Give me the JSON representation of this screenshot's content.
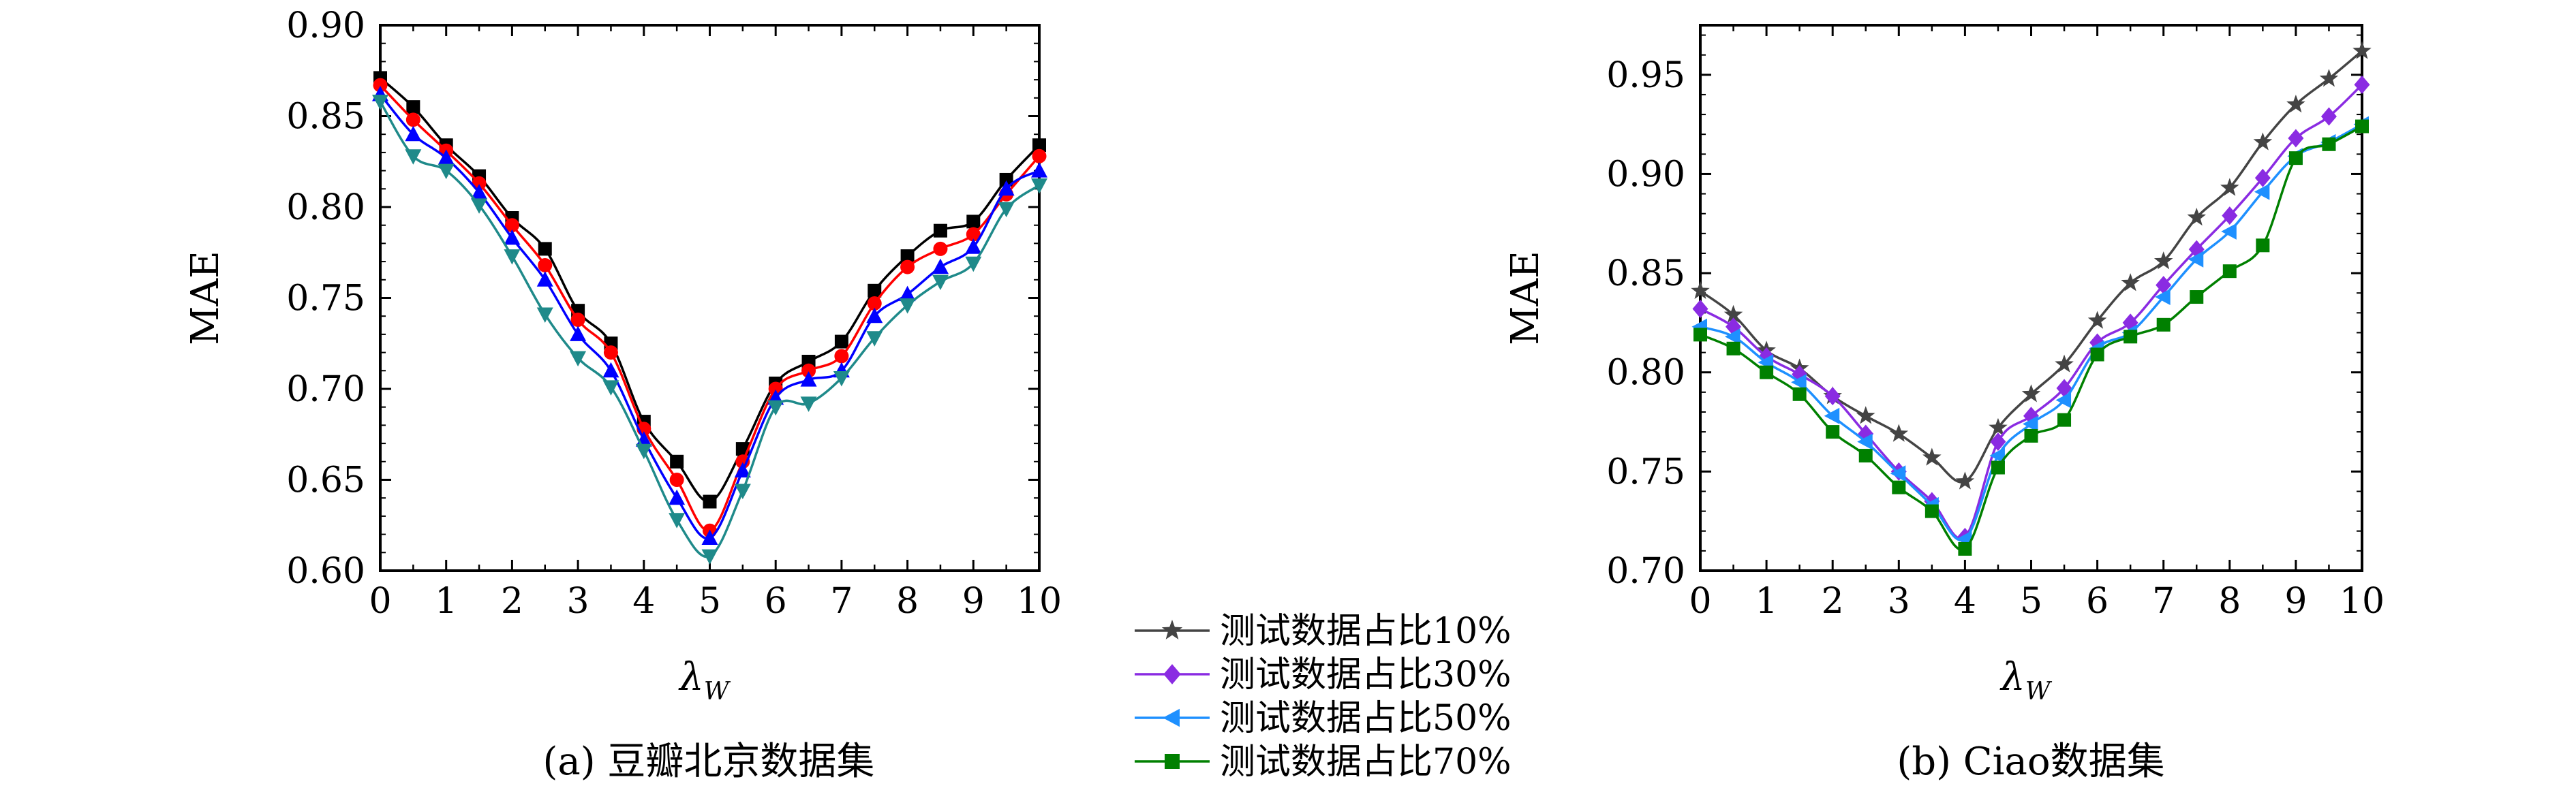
{
  "chart_data": [
    {
      "type": "line",
      "caption": "(a) 豆瓣北京数据集",
      "xlabel": "λ",
      "xlabel_sub": "W",
      "ylabel": "MAE",
      "xlim": [
        0,
        10
      ],
      "ylim": [
        0.6,
        0.9
      ],
      "x_ticks": [
        0,
        1,
        2,
        3,
        4,
        5,
        6,
        7,
        8,
        9,
        10
      ],
      "y_ticks": [
        0.6,
        0.65,
        0.7,
        0.75,
        0.8,
        0.85,
        0.9
      ],
      "y_tick_labels": [
        "0.60",
        "0.65",
        "0.70",
        "0.75",
        "0.80",
        "0.85",
        "0.90"
      ],
      "x": [
        0,
        0.5,
        1,
        1.5,
        2,
        2.5,
        3,
        3.5,
        4,
        4.5,
        5,
        5.5,
        6,
        6.5,
        7,
        7.5,
        8,
        8.5,
        9,
        9.5,
        10
      ],
      "series": [
        {
          "marker": "square",
          "color": "#000000",
          "values": [
            0.871,
            0.855,
            0.834,
            0.817,
            0.794,
            0.777,
            0.743,
            0.725,
            0.682,
            0.66,
            0.638,
            0.667,
            0.703,
            0.715,
            0.726,
            0.754,
            0.773,
            0.787,
            0.792,
            0.815,
            0.834
          ]
        },
        {
          "marker": "circle",
          "color": "#ff0000",
          "values": [
            0.867,
            0.848,
            0.831,
            0.813,
            0.79,
            0.768,
            0.738,
            0.72,
            0.678,
            0.65,
            0.622,
            0.66,
            0.7,
            0.71,
            0.718,
            0.747,
            0.767,
            0.777,
            0.785,
            0.807,
            0.828
          ]
        },
        {
          "marker": "triangle-up",
          "color": "#0000ff",
          "values": [
            0.862,
            0.84,
            0.827,
            0.808,
            0.783,
            0.76,
            0.73,
            0.71,
            0.672,
            0.64,
            0.618,
            0.655,
            0.695,
            0.705,
            0.71,
            0.74,
            0.752,
            0.767,
            0.778,
            0.81,
            0.82
          ]
        },
        {
          "marker": "triangle-down",
          "color": "#1f8a8a",
          "values": [
            0.858,
            0.828,
            0.82,
            0.801,
            0.773,
            0.741,
            0.717,
            0.701,
            0.666,
            0.628,
            0.608,
            0.644,
            0.69,
            0.692,
            0.706,
            0.728,
            0.746,
            0.759,
            0.769,
            0.799,
            0.812
          ]
        }
      ]
    },
    {
      "type": "line",
      "caption": "(b) Ciao数据集",
      "xlabel": "λ",
      "xlabel_sub": "W",
      "ylabel": "MAE",
      "xlim": [
        0,
        10
      ],
      "ylim": [
        0.7,
        0.975
      ],
      "x_ticks": [
        0,
        1,
        2,
        3,
        4,
        5,
        6,
        7,
        8,
        9,
        10
      ],
      "y_ticks": [
        0.7,
        0.75,
        0.8,
        0.85,
        0.9,
        0.95
      ],
      "y_tick_labels": [
        "0.70",
        "0.75",
        "0.80",
        "0.85",
        "0.90",
        "0.95"
      ],
      "x": [
        0,
        0.5,
        1,
        1.5,
        2,
        2.5,
        3,
        3.5,
        4,
        4.5,
        5,
        5.5,
        6,
        6.5,
        7,
        7.5,
        8,
        8.5,
        9,
        9.5,
        10
      ],
      "series": [
        {
          "marker": "star",
          "color": "#444444",
          "values": [
            0.841,
            0.829,
            0.811,
            0.802,
            0.788,
            0.778,
            0.769,
            0.757,
            0.745,
            0.772,
            0.789,
            0.804,
            0.826,
            0.845,
            0.856,
            0.878,
            0.893,
            0.916,
            0.935,
            0.948,
            0.962
          ]
        },
        {
          "marker": "diamond",
          "color": "#8a2be2",
          "values": [
            0.832,
            0.823,
            0.808,
            0.799,
            0.788,
            0.769,
            0.75,
            0.735,
            0.717,
            0.765,
            0.778,
            0.792,
            0.815,
            0.825,
            0.844,
            0.862,
            0.879,
            0.898,
            0.918,
            0.929,
            0.945
          ]
        },
        {
          "marker": "triangle-left",
          "color": "#1e90ff",
          "values": [
            0.823,
            0.818,
            0.805,
            0.795,
            0.778,
            0.765,
            0.749,
            0.733,
            0.716,
            0.758,
            0.774,
            0.786,
            0.812,
            0.82,
            0.838,
            0.857,
            0.871,
            0.891,
            0.909,
            0.916,
            0.925
          ]
        },
        {
          "marker": "square",
          "color": "#008000",
          "values": [
            0.819,
            0.812,
            0.8,
            0.789,
            0.77,
            0.758,
            0.742,
            0.73,
            0.711,
            0.752,
            0.768,
            0.776,
            0.809,
            0.818,
            0.824,
            0.838,
            0.851,
            0.864,
            0.908,
            0.915,
            0.924
          ]
        }
      ]
    }
  ],
  "legend": {
    "entries": [
      {
        "label": "测试数据占比10%",
        "marker": "star",
        "color": "#444444"
      },
      {
        "label": "测试数据占比30%",
        "marker": "diamond",
        "color": "#8a2be2"
      },
      {
        "label": "测试数据占比50%",
        "marker": "triangle-left",
        "color": "#1e90ff"
      },
      {
        "label": "测试数据占比70%",
        "marker": "square",
        "color": "#008000"
      }
    ]
  }
}
